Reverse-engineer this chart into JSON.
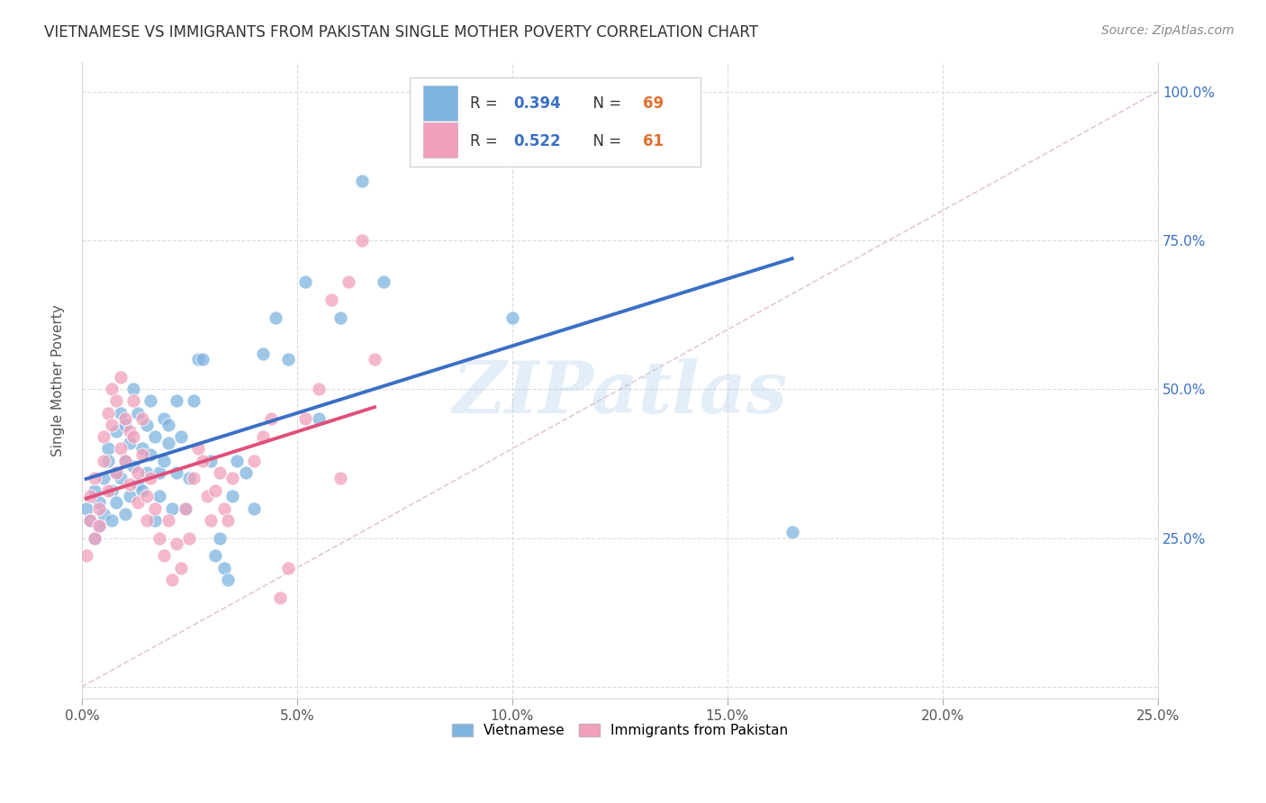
{
  "title": "VIETNAMESE VS IMMIGRANTS FROM PAKISTAN SINGLE MOTHER POVERTY CORRELATION CHART",
  "source": "Source: ZipAtlas.com",
  "ylabel": "Single Mother Poverty",
  "xlim": [
    0.0,
    0.25
  ],
  "ylim": [
    -0.02,
    1.05
  ],
  "watermark": "ZIPatlas",
  "blue_scatter_color": "#7eb3df",
  "pink_scatter_color": "#f0a0bc",
  "blue_line_color": "#3a6fc4",
  "pink_line_color": "#e0507a",
  "diag_line_color": "#c8c8c8",
  "background_color": "#ffffff",
  "grid_color": "#d8d8d8",
  "legend_R_color": "#3a6fc4",
  "legend_N_color": "#e07030",
  "right_tick_color": "#3a6fc4",
  "viet_x": [
    0.001,
    0.002,
    0.003,
    0.003,
    0.004,
    0.004,
    0.005,
    0.005,
    0.006,
    0.006,
    0.007,
    0.007,
    0.008,
    0.008,
    0.008,
    0.009,
    0.009,
    0.01,
    0.01,
    0.01,
    0.011,
    0.011,
    0.012,
    0.012,
    0.013,
    0.013,
    0.014,
    0.014,
    0.015,
    0.015,
    0.016,
    0.016,
    0.017,
    0.017,
    0.018,
    0.018,
    0.019,
    0.019,
    0.02,
    0.02,
    0.021,
    0.022,
    0.022,
    0.023,
    0.024,
    0.025,
    0.026,
    0.027,
    0.028,
    0.03,
    0.031,
    0.032,
    0.033,
    0.034,
    0.035,
    0.036,
    0.038,
    0.04,
    0.042,
    0.045,
    0.048,
    0.052,
    0.055,
    0.06,
    0.065,
    0.07,
    0.08,
    0.1,
    0.165
  ],
  "viet_y": [
    0.3,
    0.28,
    0.25,
    0.33,
    0.27,
    0.31,
    0.29,
    0.35,
    0.4,
    0.38,
    0.33,
    0.28,
    0.43,
    0.36,
    0.31,
    0.46,
    0.35,
    0.29,
    0.38,
    0.44,
    0.41,
    0.32,
    0.37,
    0.5,
    0.46,
    0.34,
    0.4,
    0.33,
    0.44,
    0.36,
    0.48,
    0.39,
    0.42,
    0.28,
    0.36,
    0.32,
    0.45,
    0.38,
    0.44,
    0.41,
    0.3,
    0.36,
    0.48,
    0.42,
    0.3,
    0.35,
    0.48,
    0.55,
    0.55,
    0.38,
    0.22,
    0.25,
    0.2,
    0.18,
    0.32,
    0.38,
    0.36,
    0.3,
    0.56,
    0.62,
    0.55,
    0.68,
    0.45,
    0.62,
    0.85,
    0.68,
    0.96,
    0.62,
    0.26
  ],
  "pak_x": [
    0.001,
    0.002,
    0.002,
    0.003,
    0.003,
    0.004,
    0.004,
    0.005,
    0.005,
    0.006,
    0.006,
    0.007,
    0.007,
    0.008,
    0.008,
    0.009,
    0.009,
    0.01,
    0.01,
    0.011,
    0.011,
    0.012,
    0.012,
    0.013,
    0.013,
    0.014,
    0.014,
    0.015,
    0.015,
    0.016,
    0.017,
    0.018,
    0.019,
    0.02,
    0.021,
    0.022,
    0.023,
    0.024,
    0.025,
    0.026,
    0.027,
    0.028,
    0.029,
    0.03,
    0.031,
    0.032,
    0.033,
    0.034,
    0.035,
    0.04,
    0.042,
    0.044,
    0.046,
    0.048,
    0.052,
    0.055,
    0.058,
    0.06,
    0.062,
    0.065,
    0.068
  ],
  "pak_y": [
    0.22,
    0.28,
    0.32,
    0.35,
    0.25,
    0.3,
    0.27,
    0.42,
    0.38,
    0.33,
    0.46,
    0.5,
    0.44,
    0.48,
    0.36,
    0.4,
    0.52,
    0.45,
    0.38,
    0.43,
    0.34,
    0.48,
    0.42,
    0.36,
    0.31,
    0.45,
    0.39,
    0.32,
    0.28,
    0.35,
    0.3,
    0.25,
    0.22,
    0.28,
    0.18,
    0.24,
    0.2,
    0.3,
    0.25,
    0.35,
    0.4,
    0.38,
    0.32,
    0.28,
    0.33,
    0.36,
    0.3,
    0.28,
    0.35,
    0.38,
    0.42,
    0.45,
    0.15,
    0.2,
    0.45,
    0.5,
    0.65,
    0.35,
    0.68,
    0.75,
    0.55
  ],
  "x_ticks": [
    0.0,
    0.05,
    0.1,
    0.15,
    0.2,
    0.25
  ],
  "x_tick_labels": [
    "0.0%",
    "5.0%",
    "10.0%",
    "15.0%",
    "20.0%",
    "25.0%"
  ],
  "y_ticks": [
    0.0,
    0.25,
    0.5,
    0.75,
    1.0
  ],
  "y_tick_labels": [
    "",
    "25.0%",
    "50.0%",
    "75.0%",
    "100.0%"
  ]
}
